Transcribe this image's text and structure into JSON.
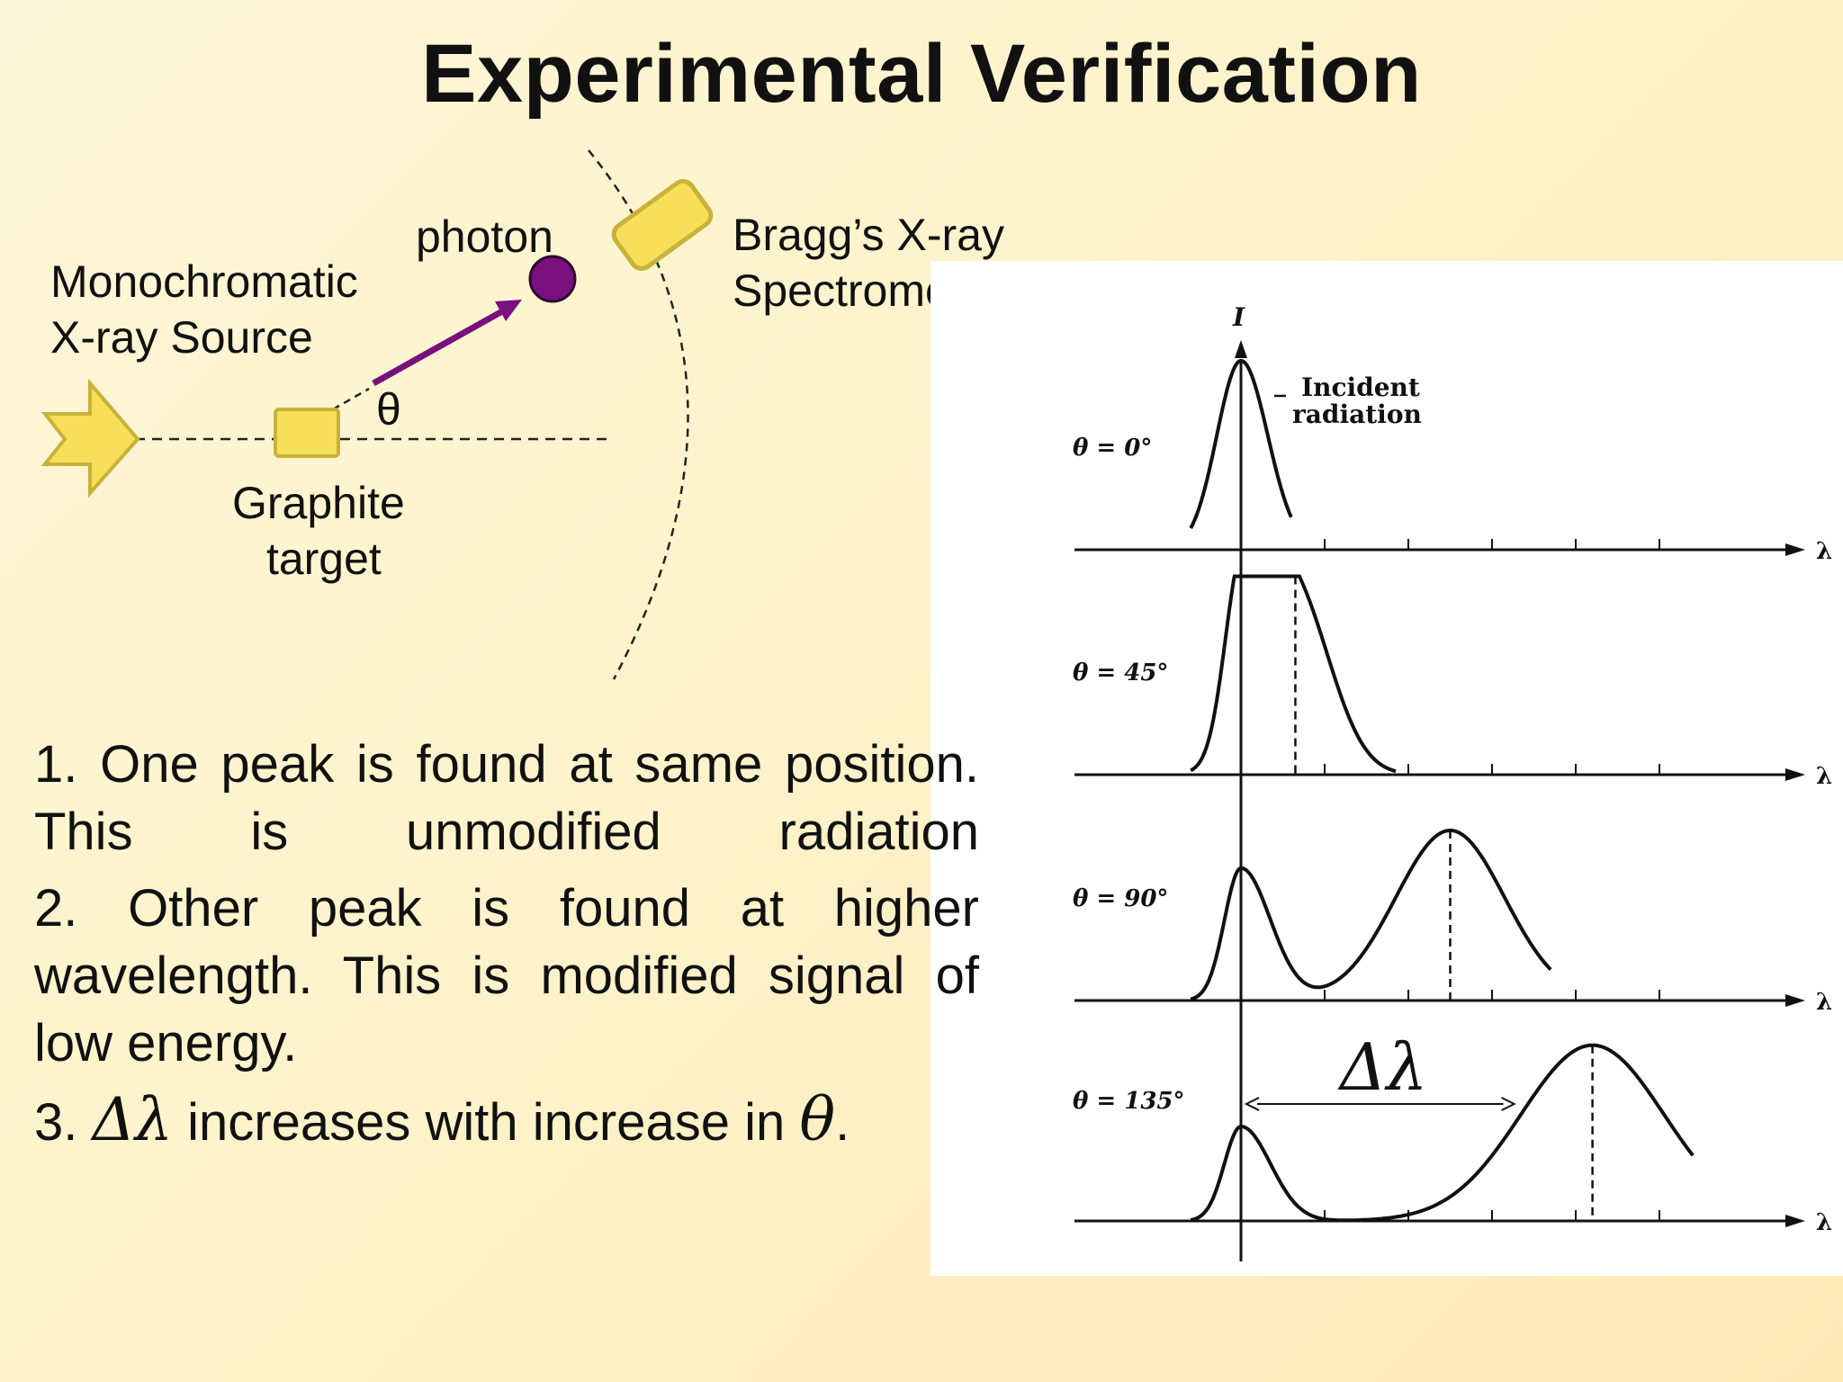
{
  "title": "Experimental Verification",
  "diagram": {
    "source_label_line1": "Monochromatic",
    "source_label_line2": "X-ray Source",
    "photon_label": "photon",
    "theta_label": "θ",
    "target_label_line1": "Graphite",
    "target_label_line2": "target",
    "spectrometer_label_line1": "Bragg’s X-ray",
    "spectrometer_label_line2": "Spectrometer",
    "colors": {
      "shape_fill": "#f7df5a",
      "shape_stroke": "#c9b23a",
      "photon": "#7a0f7e"
    }
  },
  "points": [
    {
      "number": "1.",
      "text": "One peak is found at same position. This is unmodified radiation"
    },
    {
      "number": "2.",
      "text": "Other peak is found at higher wavelength. This is modified signal of low energy."
    },
    {
      "number": "3.",
      "delta_symbol": "Δλ",
      "text": "increases with increase in",
      "theta_symbol": "θ",
      "end": "."
    }
  ],
  "chart_data": {
    "type": "line",
    "y_axis_label": "I",
    "x_axis_label": "λ",
    "incident_label": "Incident radiation",
    "delta_label": "Δλ",
    "panels": [
      {
        "angle_label": "θ = 0°",
        "peaks": [
          {
            "x": 0,
            "height": 1.0
          }
        ]
      },
      {
        "angle_label": "θ = 45°",
        "peaks": [
          {
            "x": 0,
            "height": 0.9
          },
          {
            "x": 0.65,
            "height": 0.93
          }
        ]
      },
      {
        "angle_label": "θ = 90°",
        "peaks": [
          {
            "x": 0,
            "height": 0.7
          },
          {
            "x": 2.5,
            "height": 0.9
          }
        ]
      },
      {
        "angle_label": "θ = 135°",
        "peaks": [
          {
            "x": 0,
            "height": 0.5
          },
          {
            "x": 4.2,
            "height": 0.93
          }
        ]
      }
    ]
  }
}
